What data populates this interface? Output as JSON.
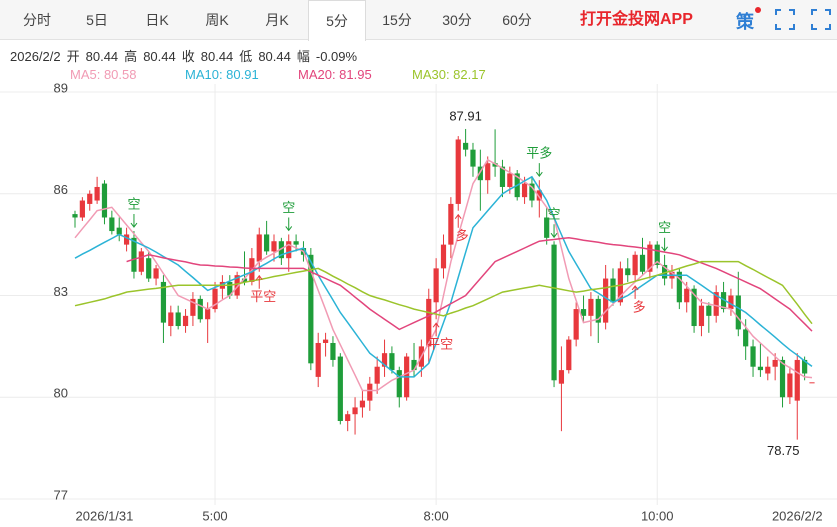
{
  "toolbar": {
    "tabs": [
      "分时",
      "5日",
      "日K",
      "周K",
      "月K",
      "5分",
      "15分",
      "30分",
      "60分"
    ],
    "active_tab": 5,
    "app_link": "打开金投网APP",
    "strategy_icon": "策"
  },
  "quote": {
    "date": "2026/2/2",
    "fields": [
      {
        "label": "开",
        "value": 80.44
      },
      {
        "label": "高",
        "value": 80.44
      },
      {
        "label": "收",
        "value": 80.44
      },
      {
        "label": "低",
        "value": 80.44
      },
      {
        "label": "幅",
        "value": "-0.09%"
      }
    ]
  },
  "chart_data": {
    "type": "candlestick",
    "up_color": "#e8383d",
    "down_color": "#1f9d3a",
    "ylim": [
      77,
      89
    ],
    "yticks": [
      77,
      80,
      83,
      86,
      89
    ],
    "grid": true,
    "categories": [
      null,
      null,
      null,
      null,
      "2026/1/31",
      null,
      null,
      null,
      null,
      null,
      null,
      null,
      null,
      null,
      null,
      null,
      null,
      null,
      null,
      "5:00",
      null,
      null,
      null,
      null,
      null,
      null,
      null,
      null,
      null,
      null,
      null,
      null,
      null,
      null,
      null,
      null,
      null,
      null,
      null,
      null,
      null,
      null,
      null,
      null,
      null,
      null,
      null,
      null,
      null,
      "8:00",
      null,
      null,
      null,
      null,
      null,
      null,
      null,
      null,
      null,
      null,
      null,
      null,
      null,
      null,
      null,
      null,
      null,
      null,
      null,
      null,
      null,
      null,
      null,
      null,
      null,
      null,
      null,
      null,
      null,
      "10:00",
      null,
      null,
      null,
      null,
      null,
      null,
      null,
      null,
      null,
      null,
      null,
      null,
      null,
      null,
      null,
      null,
      null,
      null,
      "2026/2/2",
      null,
      null
    ],
    "open": [
      85.4,
      85.3,
      85.7,
      85.8,
      86.3,
      85.3,
      85.0,
      84.5,
      84.7,
      83.7,
      84.1,
      83.5,
      83.4,
      82.1,
      82.5,
      82.1,
      82.4,
      82.9,
      82.3,
      82.6,
      83.2,
      83.4,
      83.0,
      83.5,
      83.4,
      84.0,
      84.8,
      84.3,
      84.6,
      84.1,
      84.6,
      84.4,
      84.2,
      80.6,
      81.6,
      81.6,
      81.2,
      79.3,
      79.5,
      79.7,
      79.9,
      80.4,
      80.9,
      81.3,
      80.8,
      80.0,
      81.1,
      80.9,
      81.5,
      82.8,
      83.8,
      84.5,
      85.7,
      87.5,
      87.3,
      86.8,
      86.4,
      86.9,
      86.8,
      86.2,
      86.6,
      85.9,
      86.3,
      85.8,
      85.3,
      84.5,
      80.4,
      80.8,
      81.7,
      82.6,
      82.4,
      82.9,
      82.2,
      83.5,
      82.8,
      83.8,
      83.6,
      84.2,
      83.7,
      84.5,
      83.9,
      83.5,
      83.7,
      82.8,
      83.2,
      82.1,
      82.7,
      82.4,
      83.1,
      82.6,
      83.0,
      82.0,
      81.5,
      80.9,
      80.7,
      80.9,
      81.1,
      80.0,
      79.9,
      81.1,
      80.44
    ],
    "high": [
      85.5,
      85.9,
      86.1,
      86.5,
      86.4,
      85.5,
      85.3,
      85.0,
      84.9,
      84.4,
      84.3,
      83.9,
      83.6,
      82.7,
      82.7,
      82.6,
      83.1,
      83.0,
      82.8,
      83.4,
      83.6,
      83.6,
      83.7,
      84.3,
      84.4,
      85.0,
      85.2,
      84.8,
      84.7,
      84.8,
      84.8,
      84.6,
      84.4,
      81.9,
      81.9,
      81.8,
      81.3,
      79.6,
      80.0,
      80.2,
      80.6,
      81.2,
      81.7,
      81.5,
      80.9,
      81.3,
      81.6,
      81.7,
      83.2,
      84.1,
      84.8,
      85.9,
      87.7,
      87.91,
      87.5,
      87.3,
      87.1,
      87.9,
      87.0,
      86.8,
      86.7,
      86.5,
      86.5,
      86.4,
      85.6,
      84.6,
      81.5,
      81.8,
      82.8,
      83.0,
      83.1,
      83.0,
      83.9,
      83.8,
      84.0,
      84.1,
      84.3,
      84.7,
      84.6,
      84.6,
      84.2,
      83.9,
      83.8,
      83.4,
      83.3,
      82.9,
      82.8,
      83.3,
      83.4,
      83.2,
      83.7,
      82.3,
      81.7,
      81.6,
      81.2,
      81.3,
      81.2,
      80.9,
      81.3,
      81.2,
      80.44
    ],
    "low": [
      85.0,
      85.2,
      85.5,
      85.7,
      85.1,
      84.8,
      84.6,
      84.3,
      83.5,
      83.6,
      83.4,
      83.3,
      81.6,
      81.8,
      82.0,
      81.9,
      82.1,
      82.2,
      81.6,
      82.5,
      82.9,
      82.9,
      82.9,
      83.3,
      83.3,
      83.7,
      84.2,
      84.0,
      83.9,
      83.7,
      84.3,
      84.0,
      80.8,
      80.3,
      81.2,
      80.9,
      79.2,
      79.0,
      78.9,
      79.4,
      79.6,
      80.1,
      80.6,
      80.7,
      79.7,
      79.9,
      80.6,
      80.6,
      81.0,
      82.3,
      83.5,
      84.1,
      85.5,
      87.1,
      86.5,
      85.5,
      86.0,
      86.5,
      85.9,
      86.0,
      85.8,
      85.7,
      85.6,
      85.3,
      84.5,
      80.3,
      79.0,
      80.7,
      81.5,
      82.2,
      81.8,
      81.6,
      82.0,
      82.7,
      82.7,
      83.4,
      83.4,
      83.6,
      83.5,
      83.8,
      83.3,
      83.2,
      82.6,
      82.5,
      81.9,
      81.8,
      81.9,
      82.2,
      82.5,
      82.4,
      81.8,
      81.1,
      80.6,
      80.6,
      80.5,
      80.5,
      79.7,
      79.8,
      78.75,
      80.5,
      80.44
    ],
    "close": [
      85.3,
      85.8,
      86.0,
      86.2,
      85.3,
      84.9,
      84.8,
      84.8,
      83.7,
      84.3,
      83.5,
      83.8,
      82.2,
      82.5,
      82.1,
      82.4,
      82.9,
      82.3,
      82.6,
      83.2,
      83.4,
      83.0,
      83.6,
      83.4,
      84.1,
      84.8,
      84.3,
      84.6,
      84.1,
      84.6,
      84.5,
      84.2,
      81.0,
      81.6,
      81.7,
      81.1,
      79.3,
      79.5,
      79.7,
      79.9,
      80.4,
      80.9,
      81.3,
      80.8,
      80.0,
      81.2,
      80.8,
      81.5,
      82.9,
      83.8,
      84.5,
      85.7,
      87.6,
      87.3,
      86.8,
      86.4,
      86.9,
      86.8,
      86.2,
      86.6,
      85.9,
      86.3,
      85.8,
      86.1,
      84.7,
      80.5,
      80.8,
      81.7,
      82.6,
      82.4,
      82.9,
      82.2,
      83.5,
      82.8,
      83.8,
      83.6,
      84.2,
      83.7,
      84.5,
      83.9,
      83.5,
      83.7,
      82.8,
      83.2,
      82.1,
      82.7,
      82.4,
      83.1,
      82.6,
      83.0,
      82.0,
      81.5,
      80.9,
      80.8,
      80.9,
      81.1,
      80.0,
      80.7,
      81.1,
      80.7,
      80.44
    ],
    "signals_above": [
      null,
      null,
      null,
      null,
      null,
      null,
      null,
      null,
      "空",
      null,
      null,
      null,
      null,
      null,
      null,
      null,
      null,
      null,
      null,
      null,
      null,
      null,
      null,
      null,
      null,
      null,
      null,
      null,
      null,
      "空",
      null,
      null,
      null,
      null,
      null,
      null,
      null,
      null,
      null,
      null,
      null,
      null,
      null,
      null,
      null,
      null,
      null,
      null,
      null,
      null,
      null,
      null,
      null,
      null,
      null,
      null,
      null,
      null,
      null,
      null,
      null,
      null,
      null,
      "平多",
      null,
      "空",
      null,
      null,
      null,
      null,
      null,
      null,
      null,
      null,
      null,
      null,
      null,
      null,
      null,
      null,
      "空",
      null,
      null,
      null,
      null,
      null,
      null,
      null,
      null,
      null,
      null,
      null,
      null,
      null,
      null,
      null,
      null,
      null,
      null,
      null,
      null
    ],
    "signals_below": [
      null,
      null,
      null,
      null,
      null,
      null,
      null,
      null,
      null,
      null,
      null,
      null,
      null,
      null,
      null,
      null,
      null,
      null,
      null,
      null,
      null,
      null,
      null,
      null,
      null,
      "平空",
      null,
      null,
      null,
      null,
      null,
      null,
      null,
      null,
      null,
      null,
      null,
      null,
      null,
      null,
      null,
      null,
      null,
      null,
      null,
      null,
      null,
      null,
      null,
      "平空",
      null,
      null,
      "多",
      null,
      null,
      null,
      null,
      null,
      null,
      null,
      null,
      null,
      null,
      null,
      null,
      null,
      null,
      null,
      null,
      null,
      null,
      null,
      null,
      null,
      null,
      null,
      "多",
      null,
      null,
      null,
      null,
      null,
      null,
      null,
      null,
      null,
      null,
      null,
      null,
      null,
      null,
      null,
      null,
      null,
      null,
      null,
      null,
      null,
      null,
      null,
      null
    ],
    "series": [
      {
        "name": "MA5: 80.58",
        "color": "#f19bb4",
        "values": [
          84.7,
          84.97,
          85.23,
          85.5,
          85.55,
          85.6,
          85.34,
          85.08,
          84.82,
          84.56,
          84.3,
          83.98,
          83.65,
          83.33,
          83.0,
          82.9,
          82.8,
          82.7,
          82.6,
          82.73,
          82.87,
          83.0,
          83.25,
          83.5,
          83.75,
          84.0,
          84.13,
          84.25,
          84.38,
          84.5,
          84.4,
          84.3,
          83.73,
          83.15,
          82.58,
          82.0,
          81.55,
          81.1,
          80.65,
          80.2,
          80.2,
          80.2,
          80.35,
          80.5,
          80.6,
          80.7,
          80.8,
          81.2,
          81.6,
          82.0,
          83.0,
          84.0,
          84.77,
          85.53,
          86.3,
          86.65,
          87.0,
          86.88,
          86.75,
          86.63,
          86.5,
          86.35,
          86.2,
          85.9,
          85.6,
          85.3,
          84.4,
          83.5,
          82.85,
          82.2,
          82.25,
          82.3,
          82.53,
          82.75,
          82.98,
          83.2,
          83.4,
          83.6,
          83.8,
          84.0,
          83.83,
          83.67,
          83.5,
          83.27,
          83.03,
          82.8,
          82.75,
          82.7,
          82.65,
          82.6,
          82.33,
          82.07,
          81.8,
          81.6,
          81.4,
          81.2,
          81.0,
          80.87,
          80.73,
          80.6,
          80.58
        ]
      },
      {
        "name": "MA10: 80.91",
        "color": "#2bb3d6",
        "values": [
          84.1,
          84.22,
          84.33,
          84.45,
          84.57,
          84.68,
          84.8,
          84.7,
          84.6,
          84.5,
          84.4,
          84.28,
          84.15,
          84.03,
          83.9,
          83.71,
          83.53,
          83.34,
          83.15,
          83.24,
          83.33,
          83.43,
          83.52,
          83.61,
          83.7,
          83.83,
          83.95,
          84.08,
          84.2,
          84.27,
          84.33,
          84.4,
          84.0,
          83.6,
          83.23,
          82.87,
          82.5,
          82.2,
          81.9,
          81.6,
          81.3,
          81.13,
          80.95,
          80.78,
          80.6,
          80.6,
          80.6,
          80.8,
          81.0,
          81.6,
          82.2,
          82.8,
          83.53,
          84.27,
          85.0,
          85.25,
          85.5,
          85.75,
          86.0,
          86.13,
          86.25,
          86.38,
          86.5,
          86.15,
          85.8,
          85.3,
          84.8,
          84.3,
          83.93,
          83.57,
          83.2,
          83.07,
          82.93,
          82.8,
          82.9,
          83.0,
          83.15,
          83.3,
          83.45,
          83.6,
          83.6,
          83.6,
          83.6,
          83.6,
          83.45,
          83.3,
          83.15,
          83.0,
          82.88,
          82.75,
          82.63,
          82.5,
          82.32,
          82.13,
          81.95,
          81.77,
          81.58,
          81.4,
          81.24,
          81.07,
          80.91
        ]
      },
      {
        "name": "MA20: 81.95",
        "color": "#e2457c",
        "values": [
          null,
          null,
          null,
          null,
          null,
          null,
          null,
          84.0,
          84.07,
          84.13,
          84.2,
          84.16,
          84.11,
          84.07,
          84.03,
          83.99,
          83.94,
          83.9,
          83.89,
          83.87,
          83.86,
          83.84,
          83.83,
          83.81,
          83.8,
          83.8,
          83.8,
          83.8,
          83.8,
          83.8,
          83.8,
          83.8,
          83.7,
          83.6,
          83.5,
          83.4,
          83.3,
          83.13,
          82.95,
          82.78,
          82.6,
          82.45,
          82.3,
          82.15,
          82.0,
          82.1,
          82.2,
          82.3,
          82.4,
          82.52,
          82.64,
          82.76,
          82.88,
          83.0,
          83.25,
          83.5,
          83.75,
          84.0,
          84.1,
          84.2,
          84.3,
          84.4,
          84.5,
          84.6,
          84.63,
          84.65,
          84.68,
          84.7,
          84.67,
          84.63,
          84.6,
          84.57,
          84.53,
          84.5,
          84.48,
          84.45,
          84.43,
          84.4,
          84.36,
          84.32,
          84.28,
          84.24,
          84.2,
          84.12,
          84.04,
          83.96,
          83.88,
          83.8,
          83.7,
          83.6,
          83.5,
          83.4,
          83.3,
          83.2,
          83.05,
          82.9,
          82.75,
          82.6,
          82.38,
          82.17,
          81.95
        ]
      },
      {
        "name": "MA30: 82.17",
        "color": "#9bc42b",
        "values": [
          82.7,
          82.75,
          82.8,
          82.85,
          82.9,
          82.97,
          83.03,
          83.1,
          83.13,
          83.16,
          83.19,
          83.21,
          83.24,
          83.27,
          83.3,
          83.3,
          83.3,
          83.3,
          83.3,
          83.3,
          83.3,
          83.3,
          83.34,
          83.39,
          83.43,
          83.47,
          83.51,
          83.56,
          83.6,
          83.64,
          83.68,
          83.72,
          83.76,
          83.8,
          83.69,
          83.57,
          83.46,
          83.34,
          83.23,
          83.11,
          83.0,
          82.93,
          82.87,
          82.8,
          82.73,
          82.67,
          82.6,
          82.55,
          82.5,
          82.45,
          82.4,
          82.48,
          82.55,
          82.63,
          82.7,
          82.8,
          82.9,
          83.0,
          83.1,
          83.14,
          83.18,
          83.22,
          83.26,
          83.3,
          83.26,
          83.22,
          83.18,
          83.14,
          83.1,
          83.13,
          83.17,
          83.2,
          83.23,
          83.27,
          83.3,
          83.36,
          83.42,
          83.48,
          83.54,
          83.6,
          83.67,
          83.73,
          83.8,
          83.87,
          83.93,
          84.0,
          84.0,
          84.0,
          84.0,
          84.0,
          84.0,
          83.88,
          83.77,
          83.65,
          83.53,
          83.42,
          83.3,
          83.02,
          82.74,
          82.45,
          82.17
        ]
      }
    ]
  }
}
